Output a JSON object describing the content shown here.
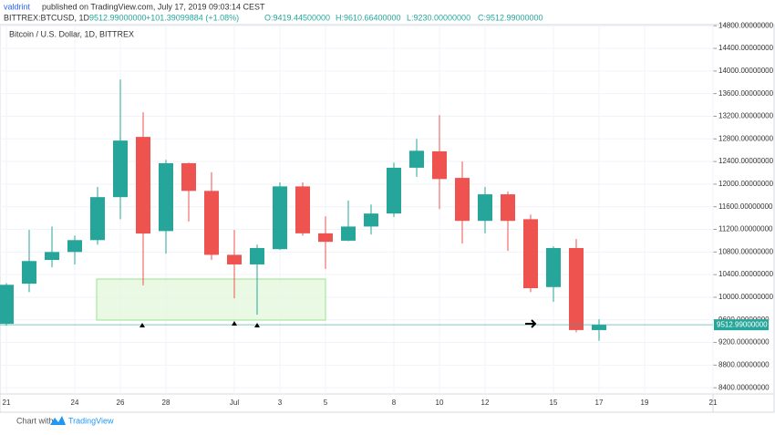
{
  "chart_data": {
    "type": "candlestick",
    "author": "valdrint",
    "published": "published on TradingView.com, July 17, 2019 09:03:14 CEST",
    "symbol": "BITTREX:BTCUSD, 1D",
    "last": "9512.99000000",
    "change": "+101.39099884 (+1.08%)",
    "ohlc_labels": [
      "O:9419.44500000",
      "H:9610.66400000",
      "L:9230.00000000",
      "C:9512.99000000"
    ],
    "title": "Bitcoin / U.S. Dollar, 1D, BITTREX",
    "categories": [
      "21",
      null,
      null,
      "24",
      null,
      "26",
      null,
      "28",
      null,
      null,
      "Jul",
      null,
      "3",
      null,
      "5",
      null,
      null,
      "8",
      null,
      "10",
      null,
      "12",
      null,
      null,
      "15",
      null,
      "17",
      null,
      "19",
      null,
      null,
      "21"
    ],
    "open": [
      9530,
      10240,
      10660,
      10800,
      11010,
      11770,
      12835,
      11170,
      12370,
      11880,
      10750,
      10580,
      10850,
      11960,
      11130,
      11000,
      11250,
      11480,
      12290,
      12580,
      12110,
      11350,
      11820,
      11380,
      10180,
      10870,
      9419.445,
      null,
      null,
      null,
      null,
      null
    ],
    "high": [
      10250,
      11190,
      11250,
      11090,
      11950,
      13850,
      13270,
      12430,
      12380,
      12210,
      11190,
      10930,
      12030,
      12030,
      11430,
      11710,
      11640,
      12380,
      12800,
      13220,
      12400,
      11950,
      11870,
      11460,
      10900,
      11030,
      9610.664,
      null,
      null,
      null,
      null,
      null
    ],
    "low": [
      9500,
      10090,
      10530,
      10580,
      10930,
      11380,
      10210,
      10770,
      11340,
      10660,
      9980,
      9690,
      10840,
      11090,
      10500,
      10990,
      11110,
      11420,
      12130,
      11560,
      10950,
      11130,
      10820,
      10090,
      9920,
      9380,
      9230,
      null,
      null,
      null,
      null,
      null
    ],
    "close": [
      10220,
      10640,
      10800,
      11010,
      11770,
      12770,
      11126,
      12370,
      11880,
      10750,
      10580,
      10870,
      11960,
      11130,
      10980,
      11250,
      11480,
      12290,
      12590,
      12090,
      11350,
      11820,
      11350,
      10160,
      10870,
      9420,
      9512.99,
      null,
      null,
      null,
      null,
      null
    ],
    "up_color": "#26a69a",
    "down_color": "#ef5350",
    "price_line": {
      "value": 9512.99,
      "label": "9512.99000000"
    },
    "ylim": [
      8290,
      14820
    ],
    "yticks": [
      {
        "value": 8400,
        "label": "8400.00000000"
      },
      {
        "value": 8800,
        "label": "8800.00000000"
      },
      {
        "value": 9200,
        "label": "9200.00000000"
      },
      {
        "value": 9600,
        "label": "9600.00000000"
      },
      {
        "value": 10000,
        "label": "10000.00000000"
      },
      {
        "value": 10400,
        "label": "10400.00000000"
      },
      {
        "value": 10800,
        "label": "10800.00000000"
      },
      {
        "value": 11200,
        "label": "11200.00000000"
      },
      {
        "value": 11600,
        "label": "11600.00000000"
      },
      {
        "value": 12000,
        "label": "12000.00000000"
      },
      {
        "value": 12400,
        "label": "12400.00000000"
      },
      {
        "value": 12800,
        "label": "12800.00000000"
      },
      {
        "value": 13200,
        "label": "13200.00000000"
      },
      {
        "value": 13600,
        "label": "13600.00000000"
      },
      {
        "value": 14000,
        "label": "14000.00000000"
      },
      {
        "value": 14400,
        "label": "14400.00000000"
      },
      {
        "value": 14800,
        "label": "14800.00000000"
      }
    ],
    "grid": true,
    "footer": "Chart with",
    "brand": "TradingView"
  }
}
